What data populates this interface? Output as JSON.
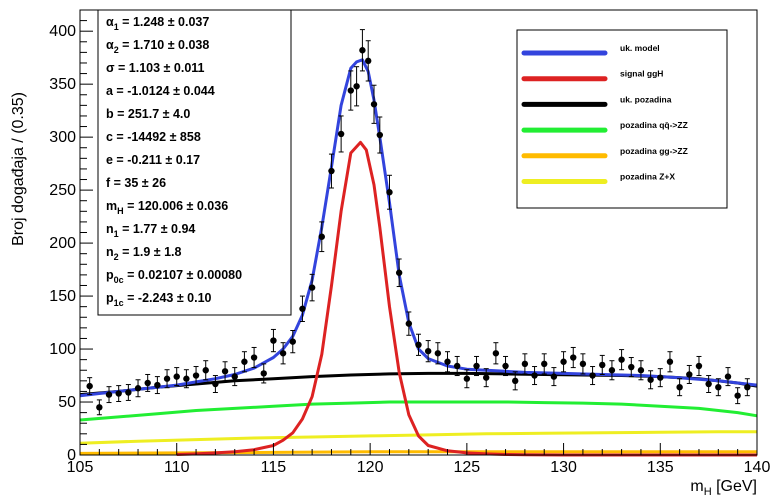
{
  "chart_data": {
    "type": "line",
    "title": "",
    "xlabel": "m_H [GeV]",
    "ylabel": "Broj događaja / (0.35)",
    "xlim": [
      105,
      140
    ],
    "ylim": [
      0,
      420
    ],
    "x_ticks": [
      105,
      110,
      115,
      120,
      125,
      130,
      135,
      140
    ],
    "y_ticks": [
      0,
      50,
      100,
      150,
      200,
      250,
      300,
      350,
      400
    ],
    "grid": false,
    "legend_position": "top-right",
    "legend": [
      {
        "label": "uk. model",
        "color": "#3344dd"
      },
      {
        "label": "signal ggH",
        "color": "#dd2222"
      },
      {
        "label": "uk. pozadina",
        "color": "#000000"
      },
      {
        "label": "pozadina qq̄->ZZ",
        "color": "#22ee33"
      },
      {
        "label": "pozadina gg->ZZ",
        "color": "#ffbb00"
      },
      {
        "label": "pozadina Z+X",
        "color": "#eeee22"
      }
    ],
    "fit_parameters": [
      {
        "sym": "α",
        "sub": "1",
        "text": " = 1.248 ± 0.037"
      },
      {
        "sym": "α",
        "sub": "2",
        "text": " = 1.710 ± 0.038"
      },
      {
        "sym": "σ",
        "sub": "",
        "text": " = 1.103 ± 0.011"
      },
      {
        "sym": "a",
        "sub": "",
        "text": " = -1.0124 ± 0.044"
      },
      {
        "sym": "b",
        "sub": "",
        "text": " = 251.7 ± 4.0"
      },
      {
        "sym": "c",
        "sub": "",
        "text": " = -14492 ± 858"
      },
      {
        "sym": "e",
        "sub": "",
        "text": " = -0.211 ± 0.17"
      },
      {
        "sym": "f",
        "sub": "",
        "text": " = 35 ± 26"
      },
      {
        "sym": "m",
        "sub": "H",
        "text": " = 120.006 ± 0.036"
      },
      {
        "sym": "n",
        "sub": "1",
        "text": " = 1.77 ± 0.94"
      },
      {
        "sym": "n",
        "sub": "2",
        "text": " = 1.9 ± 1.8"
      },
      {
        "sym": "p",
        "sub": "0c",
        "text": " = 0.02107 ± 0.00080"
      },
      {
        "sym": "p",
        "sub": "1c",
        "text": " = -2.243 ± 0.10"
      }
    ],
    "series": [
      {
        "name": "uk. model",
        "color": "#3344dd",
        "x": [
          105,
          106,
          107,
          108,
          109,
          110,
          111,
          112,
          113,
          114,
          115,
          115.5,
          116,
          116.5,
          117,
          117.5,
          118,
          118.5,
          119,
          119.3,
          119.6,
          119.9,
          120.2,
          120.5,
          121,
          121.5,
          122,
          122.5,
          123,
          124,
          125,
          126,
          127,
          128,
          130,
          132,
          134,
          136,
          138,
          140
        ],
        "y": [
          56,
          58,
          60,
          62,
          64,
          66,
          69,
          72,
          76,
          82,
          92,
          100,
          112,
          132,
          165,
          215,
          272,
          330,
          365,
          371,
          373,
          362,
          335,
          300,
          238,
          170,
          125,
          100,
          91,
          84,
          81,
          80,
          79,
          78,
          77,
          76,
          75,
          73,
          70,
          66
        ]
      },
      {
        "name": "signal ggH",
        "color": "#dd2222",
        "x": [
          110,
          111,
          112,
          113,
          114,
          115,
          115.5,
          116,
          116.5,
          117,
          117.5,
          118,
          118.5,
          119,
          119.5,
          119.8,
          120.2,
          120.5,
          121,
          121.5,
          122,
          122.5,
          123,
          124,
          125,
          126,
          127,
          128,
          130,
          132,
          134,
          136,
          138,
          140
        ],
        "y": [
          0.5,
          1,
          2,
          3,
          5,
          9,
          14,
          21,
          34,
          55,
          95,
          160,
          230,
          285,
          295,
          288,
          255,
          215,
          140,
          78,
          38,
          18,
          9,
          4,
          2,
          1,
          0.5,
          0.3,
          0,
          0,
          0,
          0,
          0,
          0
        ]
      },
      {
        "name": "uk. pozadina",
        "color": "#000000",
        "x": [
          105,
          107,
          109,
          111,
          113,
          115,
          117,
          119,
          121,
          123,
          125,
          127,
          129,
          131,
          133,
          135,
          137,
          139,
          140
        ],
        "y": [
          57,
          60,
          64,
          67,
          70,
          72,
          74,
          75.5,
          76.5,
          77,
          77,
          76.5,
          76,
          75.5,
          75,
          74,
          72,
          68,
          65
        ]
      },
      {
        "name": "pozadina qq̄->ZZ",
        "color": "#22ee33",
        "x": [
          105,
          107,
          109,
          111,
          113,
          115,
          117,
          119,
          121,
          123,
          125,
          127,
          129,
          131,
          133,
          135,
          137,
          139,
          140
        ],
        "y": [
          33,
          36,
          39,
          42,
          44,
          46,
          48,
          49,
          50,
          50,
          50,
          50,
          49.5,
          49,
          48,
          46,
          44,
          40,
          37
        ]
      },
      {
        "name": "pozadina gg->ZZ",
        "color": "#ffbb00",
        "x": [
          105,
          110,
          115,
          120,
          125,
          130,
          135,
          140
        ],
        "y": [
          1.5,
          2,
          2.5,
          3,
          3,
          3,
          3,
          3
        ]
      },
      {
        "name": "pozadina Z+X",
        "color": "#eeee22",
        "x": [
          105,
          108,
          111,
          114,
          117,
          120,
          123,
          126,
          129,
          132,
          135,
          138,
          140
        ],
        "y": [
          11,
          13,
          14.5,
          16,
          17,
          18,
          19,
          20,
          20.5,
          21,
          21.5,
          22,
          22
        ]
      },
      {
        "name": "data",
        "type": "scatter",
        "color": "#000000",
        "x": [
          105.5,
          106,
          106.5,
          107,
          107.5,
          108,
          108.5,
          109,
          109.5,
          110,
          110.5,
          111,
          111.5,
          112,
          112.5,
          113,
          113.5,
          114,
          114.5,
          115,
          115.5,
          116,
          116.5,
          117,
          117.5,
          118,
          118.5,
          119,
          119.3,
          119.6,
          119.9,
          120.2,
          120.5,
          121,
          121.5,
          122,
          122.5,
          123,
          123.5,
          124,
          124.5,
          125,
          125.5,
          126,
          126.5,
          127,
          127.5,
          128,
          128.5,
          129,
          129.5,
          130,
          130.5,
          131,
          131.5,
          132,
          132.5,
          133,
          133.5,
          134,
          134.5,
          135,
          135.5,
          136,
          136.5,
          137,
          137.5,
          138,
          138.5,
          139,
          139.5
        ],
        "y": [
          65,
          45,
          57,
          58,
          59,
          63,
          68,
          66,
          72,
          74,
          72,
          75,
          80,
          67,
          79,
          74,
          88,
          92,
          77,
          108,
          96,
          107,
          138,
          158,
          206,
          268,
          303,
          344,
          348,
          382,
          372,
          331,
          302,
          248,
          172,
          124,
          104,
          98,
          96,
          88,
          84,
          72,
          84,
          73,
          96,
          84,
          70,
          86,
          75,
          86,
          74,
          88,
          92,
          86,
          75,
          85,
          80,
          90,
          83,
          80,
          71,
          73,
          88,
          64,
          76,
          84,
          67,
          64,
          74,
          56,
          64
        ],
        "err": [
          8,
          7,
          7.5,
          7.5,
          7.5,
          8,
          8,
          8,
          8.5,
          8.5,
          8.5,
          8.5,
          9,
          8,
          9,
          8.5,
          9.5,
          9.5,
          9,
          10.5,
          10,
          10.5,
          12,
          12.5,
          14,
          16,
          17,
          18.5,
          18.5,
          19.5,
          19,
          18,
          17,
          16,
          13,
          11,
          10,
          10,
          10,
          9.5,
          9,
          8.5,
          9,
          8.5,
          10,
          9,
          8.5,
          9.5,
          8.5,
          9.5,
          8.5,
          9.5,
          9.5,
          9.5,
          8.5,
          9,
          9,
          9.5,
          9,
          9,
          8.5,
          8.5,
          9.5,
          8,
          8.5,
          9,
          8,
          8,
          8.5,
          7.5,
          8
        ]
      }
    ]
  }
}
